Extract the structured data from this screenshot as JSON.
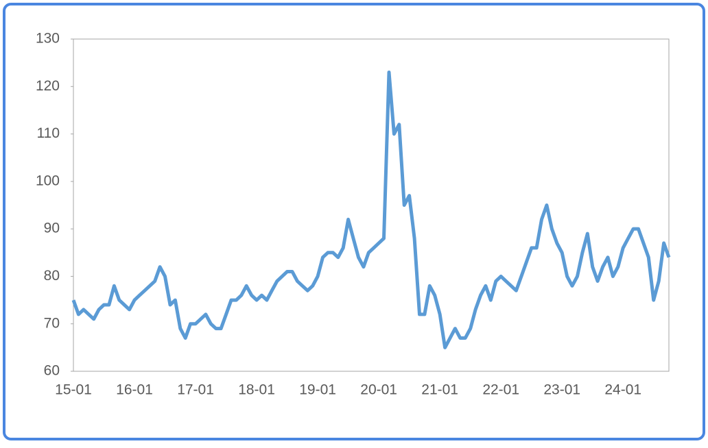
{
  "chart_data": {
    "type": "line",
    "categories": [
      "15-01",
      null,
      null,
      null,
      null,
      null,
      null,
      null,
      null,
      null,
      null,
      null,
      "16-01",
      null,
      null,
      null,
      null,
      null,
      null,
      null,
      null,
      null,
      null,
      null,
      "17-01",
      null,
      null,
      null,
      null,
      null,
      null,
      null,
      null,
      null,
      null,
      null,
      "18-01",
      null,
      null,
      null,
      null,
      null,
      null,
      null,
      null,
      null,
      null,
      null,
      "19-01",
      null,
      null,
      null,
      null,
      null,
      null,
      null,
      null,
      null,
      null,
      null,
      "20-01",
      null,
      null,
      null,
      null,
      null,
      null,
      null,
      null,
      null,
      null,
      null,
      "21-01",
      null,
      null,
      null,
      null,
      null,
      null,
      null,
      null,
      null,
      null,
      null,
      "22-01",
      null,
      null,
      null,
      null,
      null,
      null,
      null,
      null,
      null,
      null,
      null,
      "23-01",
      null,
      null,
      null,
      null,
      null,
      null,
      null,
      null,
      null,
      null,
      null,
      "24-01",
      null,
      null,
      null,
      null,
      null,
      null,
      null,
      null,
      null
    ],
    "series": [
      {
        "color": "#5b9bd5",
        "values": [
          75,
          72,
          73,
          72,
          71,
          73,
          74,
          74,
          78,
          75,
          74,
          73,
          75,
          76,
          77,
          78,
          79,
          82,
          80,
          74,
          75,
          69,
          67,
          70,
          70,
          71,
          72,
          70,
          69,
          69,
          72,
          75,
          75,
          76,
          78,
          76,
          75,
          76,
          75,
          77,
          79,
          80,
          81,
          81,
          79,
          78,
          77,
          78,
          80,
          84,
          85,
          85,
          84,
          86,
          92,
          88,
          84,
          82,
          85,
          86,
          87,
          88,
          123,
          110,
          112,
          95,
          97,
          88,
          72,
          72,
          78,
          76,
          72,
          65,
          67,
          69,
          67,
          67,
          69,
          73,
          76,
          78,
          75,
          79,
          80,
          79,
          78,
          77,
          80,
          83,
          86,
          86,
          92,
          95,
          90,
          87,
          85,
          80,
          78,
          80,
          85,
          89,
          82,
          79,
          82,
          84,
          80,
          82,
          86,
          88,
          90,
          90,
          87,
          84,
          75,
          79,
          87,
          84
        ]
      }
    ],
    "ylim": [
      60,
      130
    ],
    "yticks": [
      60,
      70,
      80,
      90,
      100,
      110,
      120,
      130
    ]
  }
}
